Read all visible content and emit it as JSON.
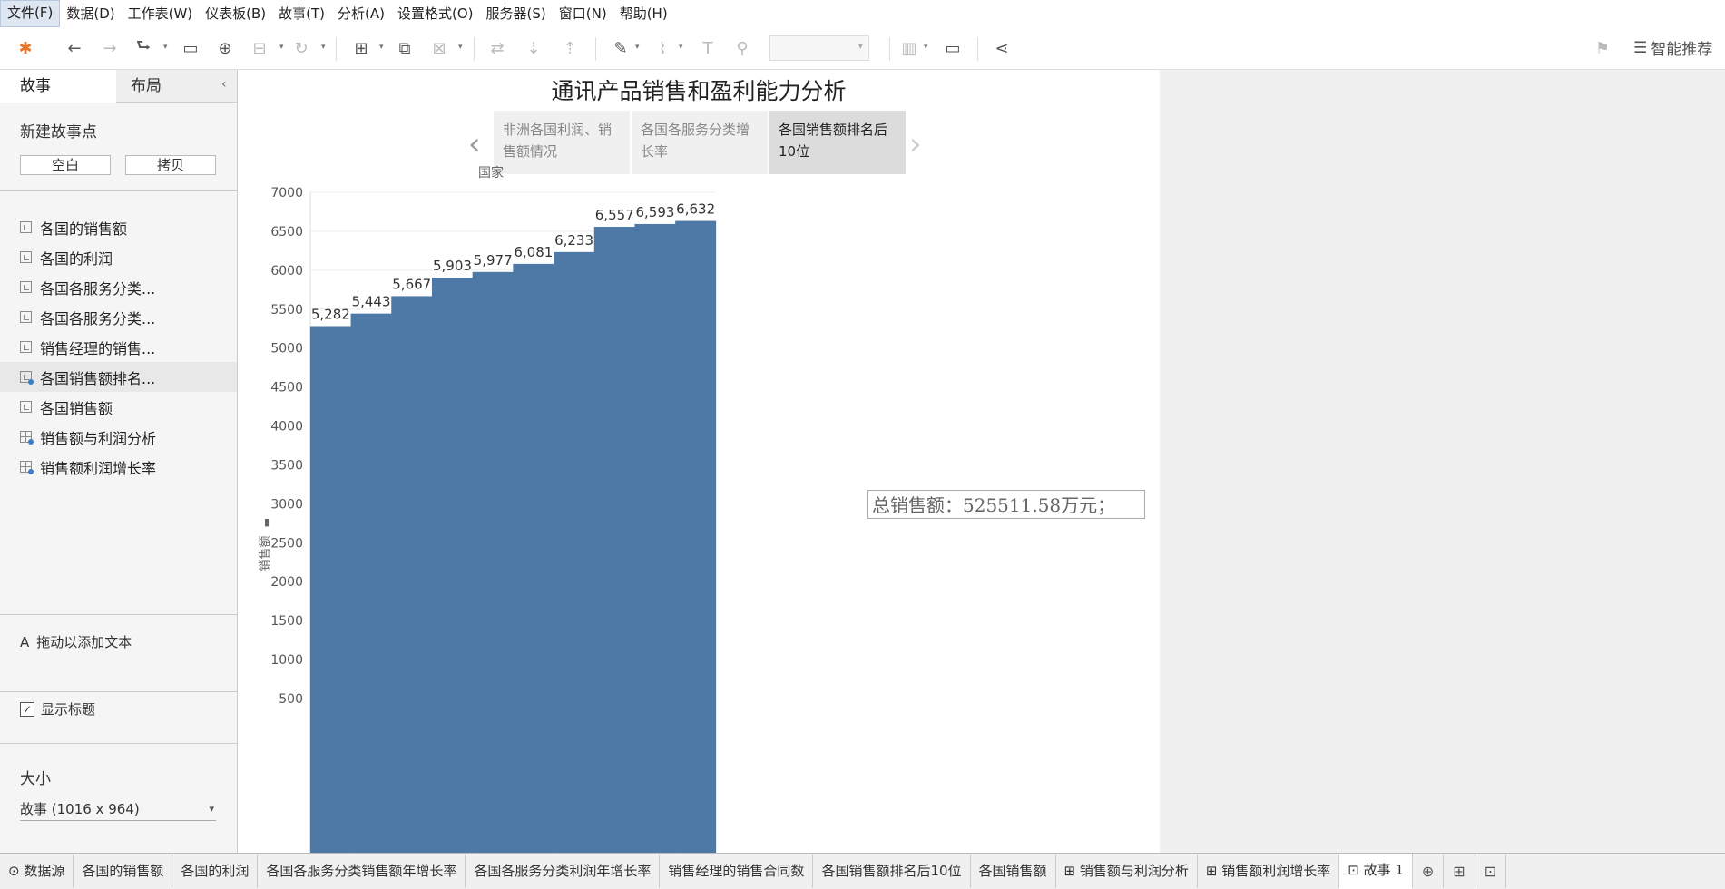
{
  "menubar": {
    "items": [
      "文件(F)",
      "数据(D)",
      "工作表(W)",
      "仪表板(B)",
      "故事(T)",
      "分析(A)",
      "设置格式(O)",
      "服务器(S)",
      "窗口(N)",
      "帮助(H)"
    ]
  },
  "toolbar": {
    "smart_recommend": "智能推荐"
  },
  "sidebar": {
    "tabs": [
      "故事",
      "布局"
    ],
    "new_story_point": "新建故事点",
    "blank_button": "空白",
    "duplicate_button": "拷贝",
    "sheets": [
      {
        "label": "各国的销售额",
        "type": "sheet"
      },
      {
        "label": "各国的利润",
        "type": "sheet"
      },
      {
        "label": "各国各服务分类...",
        "type": "sheet"
      },
      {
        "label": "各国各服务分类...",
        "type": "sheet"
      },
      {
        "label": "销售经理的销售...",
        "type": "sheet"
      },
      {
        "label": "各国销售额排名...",
        "type": "sheet",
        "selected": true,
        "badge": true
      },
      {
        "label": "各国销售额",
        "type": "sheet"
      },
      {
        "label": "销售额与利润分析",
        "type": "dashboard",
        "badge": true
      },
      {
        "label": "销售额利润增长率",
        "type": "dashboard",
        "badge": true
      }
    ],
    "drag_text": "拖动以添加文本",
    "show_title": "显示标题",
    "show_title_checked": true,
    "size_label": "大小",
    "size_value": "故事 (1016 x 964)"
  },
  "story": {
    "title": "通讯产品销售和盈利能力分析",
    "points": [
      {
        "label": "非洲各国利润、销售额情况",
        "current": false
      },
      {
        "label": "各国各服务分类增长率",
        "current": false
      },
      {
        "label": "各国销售额排名后10位",
        "current": true
      }
    ],
    "annotation": "总销售额：525511.58万元；"
  },
  "chart_data": {
    "type": "bar",
    "title": "国家",
    "ylabel": "销售额",
    "ylim": [
      500,
      7000
    ],
    "yticks": [
      500,
      1000,
      1500,
      2000,
      2500,
      3000,
      3500,
      4000,
      4500,
      5000,
      5500,
      6000,
      6500,
      7000
    ],
    "values": [
      5282,
      5443,
      5667,
      5903,
      5977,
      6081,
      6233,
      6557,
      6593,
      6632
    ],
    "value_labels": [
      "5,282",
      "5,443",
      "5,667",
      "5,903",
      "5,977",
      "6,081",
      "6,233",
      "6,557",
      "6,593",
      "6,632"
    ],
    "bar_color": "#4e79a7",
    "grid": true
  },
  "bottom_tabs": [
    "数据源",
    "各国的销售额",
    "各国的利润",
    "各国各服务分类销售额年增长率",
    "各国各服务分类利润年增长率",
    "销售经理的销售合同数",
    "各国销售额排名后10位",
    "各国销售额",
    "⊞ 销售额与利润分析",
    "⊞ 销售额利润增长率",
    "⊡ 故事 1"
  ]
}
